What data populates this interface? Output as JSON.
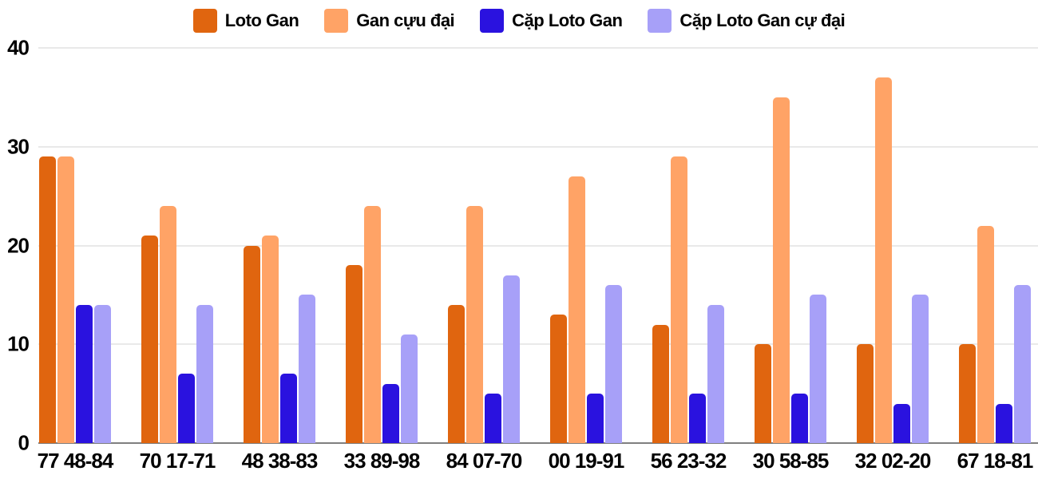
{
  "chart_data": {
    "type": "bar",
    "title": "",
    "xlabel": "",
    "ylabel": "",
    "categories": [
      "77 48-84",
      "70 17-71",
      "48 38-83",
      "33 89-98",
      "84 07-70",
      "00 19-91",
      "56 23-32",
      "30 58-85",
      "32 02-20",
      "67 18-81"
    ],
    "series": [
      {
        "name": "Loto Gan",
        "color": "#E0650F",
        "values": [
          29,
          21,
          20,
          18,
          14,
          13,
          12,
          10,
          10,
          10
        ]
      },
      {
        "name": "Gan cựu đại",
        "color": "#FFA366",
        "values": [
          29,
          24,
          21,
          24,
          24,
          27,
          29,
          35,
          37,
          22
        ]
      },
      {
        "name": "Cặp Loto Gan",
        "color": "#2A12DF",
        "values": [
          14,
          7,
          7,
          6,
          5,
          5,
          5,
          5,
          4,
          4
        ]
      },
      {
        "name": "Cặp Loto Gan cự đại",
        "color": "#A7A0F8",
        "values": [
          14,
          14,
          15,
          11,
          17,
          16,
          14,
          15,
          15,
          16
        ]
      }
    ],
    "y_ticks": [
      0,
      10,
      20,
      30,
      40
    ],
    "ylim": [
      0,
      40
    ],
    "grid": true,
    "legend_position": "top"
  },
  "colors": {
    "background": "#FFFFFF",
    "gridline": "#E9E9E9",
    "axis_line": "#7F7F7F",
    "text": "#000000"
  }
}
